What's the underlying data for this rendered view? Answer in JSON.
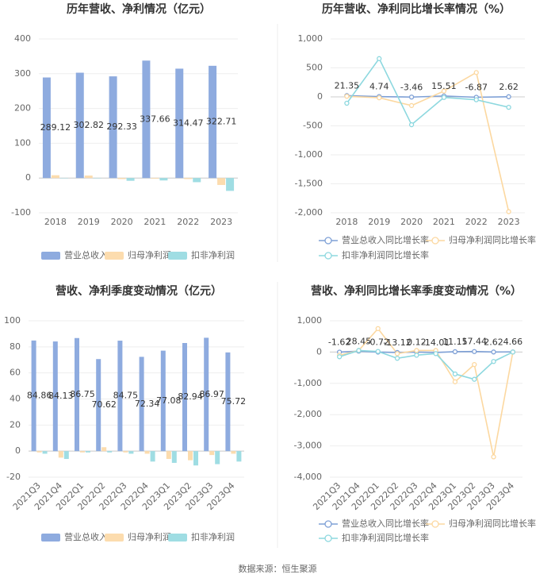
{
  "chart_data": [
    {
      "type": "bar",
      "title": "历年营收、净利情况（亿元）",
      "categories": [
        "2018",
        "2019",
        "2020",
        "2021",
        "2022",
        "2023"
      ],
      "series": [
        {
          "name": "营业总收入",
          "color": "#8eabdf",
          "values": [
            289.12,
            302.82,
            292.33,
            337.66,
            314.47,
            322.71
          ],
          "data_labels": true
        },
        {
          "name": "归母净利润",
          "color": "#fcdcae",
          "values": [
            8,
            7,
            -3,
            -2,
            -3,
            -20
          ]
        },
        {
          "name": "扣非净利润",
          "color": "#9fdde3",
          "values": [
            -1,
            -1,
            -8,
            -7,
            -12,
            -37
          ]
        }
      ],
      "ylim": [
        -100,
        400
      ],
      "yticks": [
        -100,
        0,
        100,
        200,
        300,
        400
      ],
      "grid": true
    },
    {
      "type": "line",
      "title": "历年营收、净利同比增长率情况（%）",
      "categories": [
        "2018",
        "2019",
        "2020",
        "2021",
        "2022",
        "2023"
      ],
      "series": [
        {
          "name": "营业总收入同比增长率",
          "color": "#7ea0d6",
          "values": [
            21.35,
            4.74,
            -3.46,
            15.51,
            -6.87,
            2.62
          ],
          "data_labels": true
        },
        {
          "name": "归母净利润同比增长率",
          "color": "#fcd8a0",
          "values": [
            10,
            -15,
            -150,
            100,
            420,
            -1980
          ]
        },
        {
          "name": "扣非净利润同比增长率",
          "color": "#8dd8df",
          "values": [
            -110,
            660,
            -480,
            -10,
            -50,
            -180
          ]
        }
      ],
      "ylim": [
        -2000,
        1000
      ],
      "yticks": [
        {
          "value": -2000,
          "label": "-2,000"
        },
        {
          "value": -1500,
          "label": "-1,500"
        },
        {
          "value": -1000,
          "label": "-1,000"
        },
        -500,
        0,
        500,
        {
          "value": 1000,
          "label": "1,000"
        }
      ],
      "grid": true
    },
    {
      "type": "bar",
      "title": "营收、净利季度变动情况（亿元）",
      "categories": [
        "2021Q3",
        "2021Q4",
        "2022Q1",
        "2022Q2",
        "2022Q3",
        "2022Q4",
        "2023Q1",
        "2023Q2",
        "2023Q3",
        "2023Q4"
      ],
      "series": [
        {
          "name": "营业总收入",
          "color": "#8eabdf",
          "values": [
            84.86,
            84.13,
            86.75,
            70.62,
            84.75,
            72.34,
            77.08,
            82.94,
            86.97,
            75.72
          ],
          "data_labels": true
        },
        {
          "name": "归母净利润",
          "color": "#fcdcae",
          "values": [
            -1,
            -5,
            -1,
            3,
            -1,
            -2,
            -6,
            -7,
            -3,
            -2
          ]
        },
        {
          "name": "扣非净利润",
          "color": "#9fdde3",
          "values": [
            -2,
            -6,
            -1,
            -1,
            -2,
            -8,
            -9,
            -11,
            -10,
            -8
          ]
        }
      ],
      "ylim": [
        -20,
        100
      ],
      "yticks": [
        -20,
        0,
        20,
        40,
        60,
        80,
        100
      ],
      "grid": true
    },
    {
      "type": "line",
      "title": "营收、净利同比增长率季度变动情况（%）",
      "categories": [
        "2021Q3",
        "2021Q4",
        "2022Q1",
        "2022Q2",
        "2022Q3",
        "2022Q4",
        "2023Q1",
        "2023Q2",
        "2023Q3",
        "2023Q4"
      ],
      "series": [
        {
          "name": "营业总收入同比增长率",
          "color": "#7ea0d6",
          "values": [
            -1.62,
            28.45,
            -0.72,
            -13.12,
            0.12,
            -14.01,
            11.15,
            17.44,
            2.62,
            4.66
          ],
          "data_labels": true
        },
        {
          "name": "归母净利润同比增长率",
          "color": "#fcd8a0",
          "values": [
            -100,
            50,
            750,
            -50,
            50,
            50,
            -950,
            -400,
            -3350,
            0
          ]
        },
        {
          "name": "扣非净利润同比增长率",
          "color": "#8dd8df",
          "values": [
            -150,
            50,
            20,
            -200,
            -100,
            -50,
            -700,
            -870,
            -300,
            0
          ]
        }
      ],
      "ylim": [
        -4000,
        1000
      ],
      "yticks": [
        {
          "value": -4000,
          "label": "-4,000"
        },
        {
          "value": -3000,
          "label": "-3,000"
        },
        {
          "value": -2000,
          "label": "-2,000"
        },
        {
          "value": -1000,
          "label": "-1,000"
        },
        0,
        {
          "value": 1000,
          "label": "1,000"
        }
      ],
      "grid": true
    }
  ],
  "source": "数据来源：恒生聚源"
}
